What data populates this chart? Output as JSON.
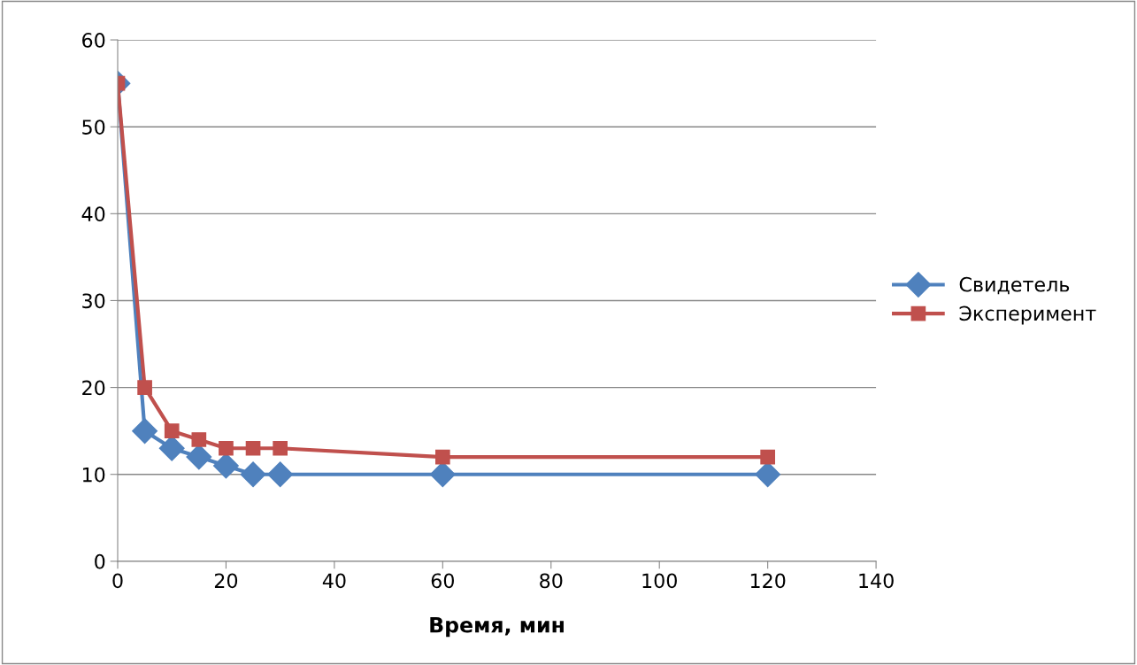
{
  "chart_data": {
    "type": "line",
    "xlabel": "Время, мин",
    "x": [
      0,
      5,
      10,
      15,
      20,
      25,
      30,
      60,
      120
    ],
    "series": [
      {
        "name": "Свидетель",
        "color": "#4f81bd",
        "marker": "diamond",
        "values": [
          55,
          15,
          13,
          12,
          11,
          10,
          10,
          10,
          10
        ]
      },
      {
        "name": "Эксперимент",
        "color": "#c0504d",
        "marker": "square",
        "values": [
          55,
          20,
          15,
          14,
          13,
          13,
          13,
          12,
          12
        ]
      }
    ],
    "xlim": [
      0,
      140
    ],
    "xticks": [
      0,
      20,
      40,
      60,
      80,
      100,
      120,
      140
    ],
    "ylim": [
      0,
      60
    ],
    "yticks": [
      0,
      10,
      20,
      30,
      40,
      50,
      60
    ],
    "grid": "y",
    "legend": "right",
    "line_style": "solid"
  }
}
